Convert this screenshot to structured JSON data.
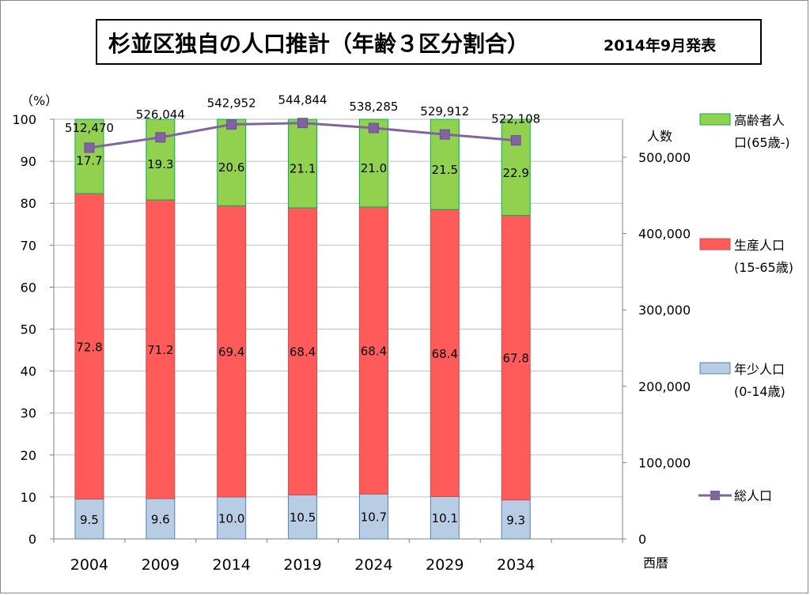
{
  "title": {
    "main": "杉並区独自の人口推計（年齢３区分割合）",
    "sub": "2014年9月発表"
  },
  "chart_data": {
    "type": "bar",
    "stacked": true,
    "categories": [
      "2004",
      "2009",
      "2014",
      "2019",
      "2024",
      "2029",
      "2034"
    ],
    "series": [
      {
        "name": "年少人口(0-14歳)",
        "color": "#b8cce4",
        "values": [
          9.5,
          9.6,
          10.0,
          10.5,
          10.7,
          10.1,
          9.3
        ]
      },
      {
        "name": "生産人口(15-65歳)",
        "color": "#ff5b5b",
        "values": [
          72.8,
          71.2,
          69.4,
          68.4,
          68.4,
          68.4,
          67.8
        ]
      },
      {
        "name": "高齢者人口(65歳-)",
        "color": "#92d050",
        "values": [
          17.7,
          19.3,
          20.6,
          21.1,
          21.0,
          21.5,
          22.9
        ]
      }
    ],
    "line_series": {
      "name": "総人口",
      "color": "#8064a2",
      "axis": "right",
      "values": [
        512470,
        526044,
        542952,
        544844,
        538285,
        529912,
        522108
      ],
      "labels": [
        "512,470",
        "526,044",
        "542,952",
        "544,844",
        "538,285",
        "529,912",
        "522,108"
      ]
    },
    "y_left": {
      "label": "（%）",
      "range": [
        0,
        100
      ],
      "ticks": [
        "0",
        "10",
        "20",
        "30",
        "40",
        "50",
        "60",
        "70",
        "80",
        "90",
        "100"
      ]
    },
    "y_right": {
      "label": "人数",
      "range": [
        0,
        550000
      ],
      "ticks": [
        "0",
        "100,000",
        "200,000",
        "300,000",
        "400,000",
        "500,000"
      ]
    },
    "x_axis": {
      "label": "西暦"
    },
    "grid": true,
    "legend": {
      "position": "right",
      "items": [
        {
          "line1": "高齢者人",
          "line2": "口(65歳-)",
          "color": "#92d050",
          "kind": "box"
        },
        {
          "line1": "生産人口",
          "line2": "(15-65歳)",
          "color": "#ff5b5b",
          "kind": "box"
        },
        {
          "line1": "年少人口",
          "line2": "(0-14歳)",
          "color": "#b8cce4",
          "kind": "box"
        },
        {
          "line1": "総人口",
          "line2": "",
          "color": "#8064a2",
          "kind": "line"
        }
      ]
    }
  }
}
